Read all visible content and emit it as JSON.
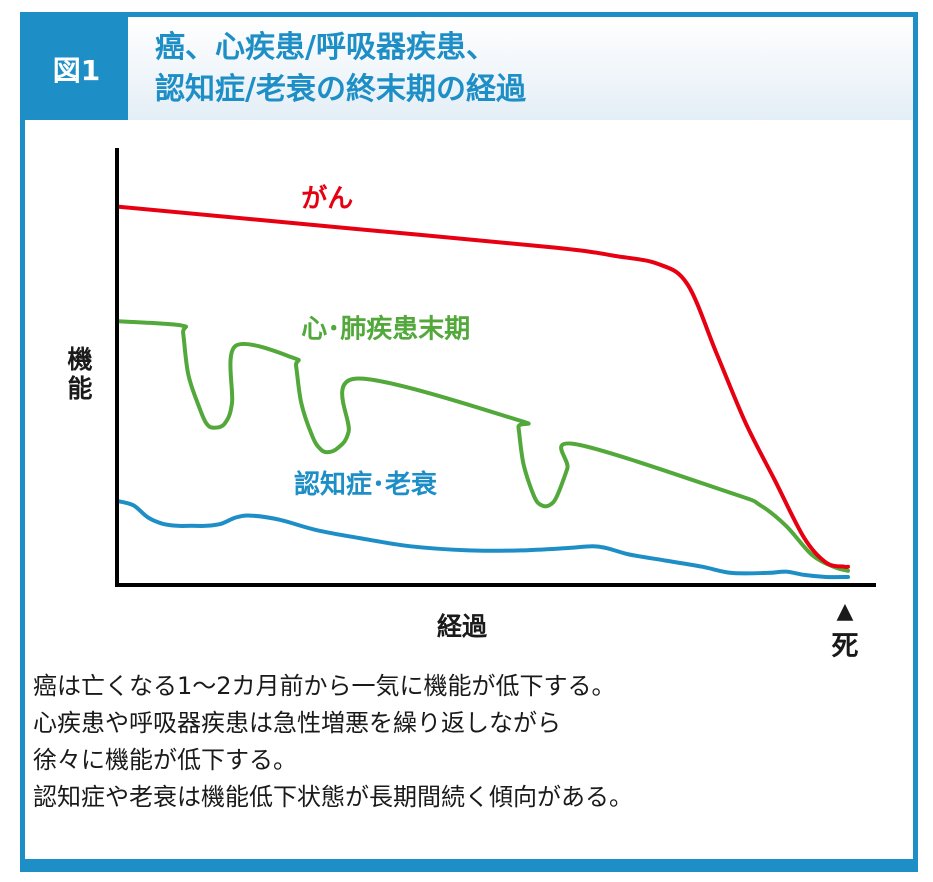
{
  "header": {
    "badge": "図1",
    "title_lines": [
      "癌、心疾患/呼吸器疾患、",
      "認知症/老衰の終末期の経過"
    ]
  },
  "chart_data": {
    "type": "line",
    "title": "",
    "xlabel": "経過",
    "ylabel": "機能",
    "end_marker": "▲",
    "end_label": "死",
    "xlim": [
      0,
      100
    ],
    "ylim": [
      0,
      100
    ],
    "grid": false,
    "series": [
      {
        "name": "がん",
        "color": "#e60012",
        "label_pos": [
          25,
          91
        ],
        "x": [
          0,
          30,
          60,
          68,
          74,
          78,
          82,
          86,
          90,
          94,
          97,
          99.5,
          100
        ],
        "y": [
          91,
          86,
          81,
          79,
          77,
          72,
          55,
          38,
          24,
          10,
          4,
          3,
          3
        ]
      },
      {
        "name": "心･肺疾患末期",
        "color": "#52a83a",
        "label_pos": [
          25,
          59
        ],
        "x": [
          0,
          8.5,
          8.8,
          9.5,
          11,
          12,
          13,
          14.5,
          15.5,
          16,
          24,
          24.3,
          25,
          26.5,
          27.5,
          28.5,
          30,
          31.5,
          32.5,
          54.5,
          54.8,
          55.5,
          57,
          58,
          59,
          60,
          61.5,
          62.5,
          84,
          88,
          91.5,
          95,
          98,
          100
        ],
        "y": [
          63,
          62,
          60,
          50,
          42,
          38,
          37,
          38,
          43,
          57,
          54,
          52,
          43,
          35,
          32,
          31,
          32,
          36,
          49,
          39,
          37,
          28,
          20,
          18,
          18,
          20,
          27,
          33,
          21,
          18,
          13,
          6,
          3,
          2
        ]
      },
      {
        "name": "認知症･老衰",
        "color": "#1e8fc6",
        "label_pos": [
          24,
          21
        ],
        "x": [
          0,
          2,
          4,
          6,
          8,
          10,
          12,
          14,
          16,
          18,
          22,
          27,
          33,
          40,
          48,
          55,
          61,
          65,
          67,
          70,
          75,
          80,
          84,
          89,
          91.5,
          94,
          97,
          100
        ],
        "y": [
          19,
          18,
          15,
          13.5,
          13,
          13,
          13,
          13.5,
          15,
          15.5,
          14.5,
          12,
          10,
          8,
          7,
          7,
          7.5,
          8,
          7.5,
          6,
          4.5,
          3,
          1.5,
          1.5,
          1.8,
          1,
          0.5,
          0.5
        ]
      }
    ]
  },
  "caption": {
    "lines": [
      "癌は亡くなる1～2カ月前から一気に機能が低下する。",
      "心疾患や呼吸器疾患は急性増悪を繰り返しながら",
      "徐々に機能が低下する。",
      "認知症や老衰は機能低下状態が長期間続く傾向がある。"
    ]
  }
}
